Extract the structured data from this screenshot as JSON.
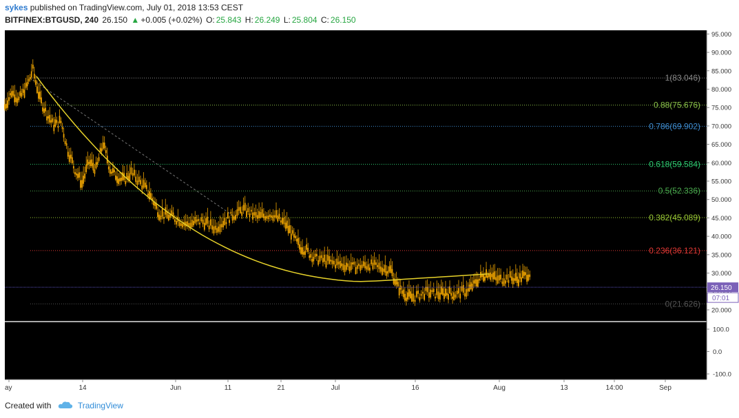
{
  "header": {
    "author": "sykes",
    "published": "published on TradingView.com, July 01, 2018 13:53 CEST",
    "symbol": "BITFINEX:BTGUSD, 240",
    "last": "26.150",
    "change": "+0.005 (+0.02%)",
    "o_label": "O:",
    "o": "25.843",
    "h_label": "H:",
    "h": "26.249",
    "l_label": "L:",
    "l": "25.804",
    "c_label": "C:",
    "c": "26.150"
  },
  "footer": {
    "created_with": "Created with",
    "brand": "TradingView"
  },
  "colors": {
    "background": "#000000",
    "candle": "#f0a500",
    "curve": "#e8d32a",
    "current_price_line": "#5b4fbf",
    "badge": "#7b61b8"
  },
  "chart_data": {
    "type": "candlestick",
    "price_axis": {
      "ylim": [
        17,
        96
      ],
      "ticks": [
        "95.000",
        "90.000",
        "85.000",
        "80.000",
        "75.000",
        "70.000",
        "65.000",
        "60.000",
        "55.000",
        "50.000",
        "45.000",
        "40.000",
        "35.000",
        "30.000",
        "25.000",
        "20.000"
      ],
      "tick_values": [
        95,
        90,
        85,
        80,
        75,
        70,
        65,
        60,
        55,
        50,
        45,
        40,
        35,
        30,
        25,
        20
      ]
    },
    "time_axis": {
      "labels": [
        "ay",
        "14",
        "Jun",
        "11",
        "21",
        "Jul",
        "16",
        "Aug",
        "13",
        "14:00",
        "Sep"
      ]
    },
    "current_price": {
      "value": 26.15,
      "label": "26.150",
      "countdown": "07:01"
    },
    "fib_levels": [
      {
        "label": "1(83.046)",
        "value": 83.046,
        "color": "#8a8a8a"
      },
      {
        "label": "0.88(75.676)",
        "value": 75.676,
        "color": "#8bc34a"
      },
      {
        "label": "0.786(69.902)",
        "value": 69.902,
        "color": "#3f8fd4"
      },
      {
        "label": "0.618(59.584)",
        "value": 59.584,
        "color": "#2ecc71"
      },
      {
        "label": "0.5(52.336)",
        "value": 52.336,
        "color": "#4caf50"
      },
      {
        "label": "0.382(45.089)",
        "value": 45.089,
        "color": "#9ccc35"
      },
      {
        "label": "0.236(36.121)",
        "value": 36.121,
        "color": "#e53935"
      },
      {
        "label": "0(21.626)",
        "value": 21.626,
        "color": "#555555"
      }
    ],
    "price_path": [
      [
        0,
        75
      ],
      [
        0.01,
        79
      ],
      [
        0.02,
        77
      ],
      [
        0.03,
        80
      ],
      [
        0.04,
        85
      ],
      [
        0.05,
        77
      ],
      [
        0.06,
        73
      ],
      [
        0.07,
        70
      ],
      [
        0.08,
        71
      ],
      [
        0.09,
        63
      ],
      [
        0.1,
        58
      ],
      [
        0.11,
        54
      ],
      [
        0.12,
        60
      ],
      [
        0.13,
        58
      ],
      [
        0.14,
        65
      ],
      [
        0.15,
        58
      ],
      [
        0.16,
        56
      ],
      [
        0.17,
        55
      ],
      [
        0.18,
        57
      ],
      [
        0.2,
        53
      ],
      [
        0.21,
        50
      ],
      [
        0.22,
        46
      ],
      [
        0.24,
        45
      ],
      [
        0.26,
        43
      ],
      [
        0.28,
        44
      ],
      [
        0.3,
        42
      ],
      [
        0.32,
        45
      ],
      [
        0.34,
        47
      ],
      [
        0.36,
        45
      ],
      [
        0.38,
        46
      ],
      [
        0.4,
        43
      ],
      [
        0.41,
        40
      ],
      [
        0.42,
        37
      ],
      [
        0.43,
        36
      ],
      [
        0.44,
        34
      ],
      [
        0.46,
        33
      ],
      [
        0.48,
        32
      ],
      [
        0.5,
        31.5
      ],
      [
        0.52,
        32
      ],
      [
        0.54,
        31
      ],
      [
        0.55,
        30.5
      ],
      [
        0.56,
        26
      ],
      [
        0.57,
        24
      ],
      [
        0.58,
        23
      ],
      [
        0.6,
        24.5
      ],
      [
        0.62,
        24
      ],
      [
        0.63,
        24.5
      ],
      [
        0.64,
        24
      ],
      [
        0.66,
        25
      ],
      [
        0.67,
        27
      ],
      [
        0.68,
        29
      ],
      [
        0.69,
        30
      ],
      [
        0.7,
        28
      ],
      [
        0.72,
        28.5
      ],
      [
        0.73,
        28
      ],
      [
        0.74,
        29
      ],
      [
        0.75,
        30
      ]
    ],
    "oscillator": {
      "ticks": [
        "100.0",
        "0.0",
        "-100.0"
      ],
      "tick_values": [
        100,
        0,
        -100
      ]
    }
  }
}
